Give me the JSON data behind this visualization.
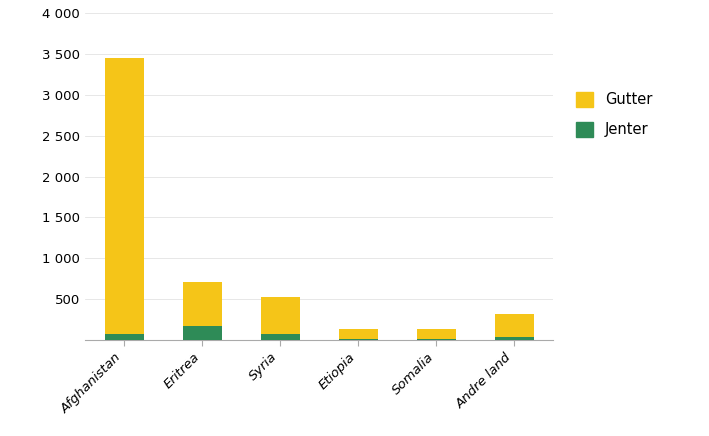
{
  "categories": [
    "Afghanistan",
    "Eritrea",
    "Syria",
    "Etiopia",
    "Somalia",
    "Andre land"
  ],
  "gutter": [
    3380,
    540,
    455,
    125,
    120,
    285
  ],
  "jenter": [
    70,
    175,
    70,
    15,
    15,
    38
  ],
  "gutter_color": "#F5C518",
  "jenter_color": "#2E8B57",
  "ylim": [
    0,
    4000
  ],
  "yticks": [
    0,
    500,
    1000,
    1500,
    2000,
    2500,
    3000,
    3500,
    4000
  ],
  "ytick_labels": [
    "",
    "500",
    "1 000",
    "1 500",
    "2 000",
    "2 500",
    "3 000",
    "3 500",
    "4 000"
  ],
  "legend_labels": [
    "Gutter",
    "Jenter"
  ],
  "background_color": "#ffffff",
  "bar_width": 0.5,
  "tick_fontsize": 9.5,
  "legend_fontsize": 10.5,
  "label_fontsize": 9.5
}
